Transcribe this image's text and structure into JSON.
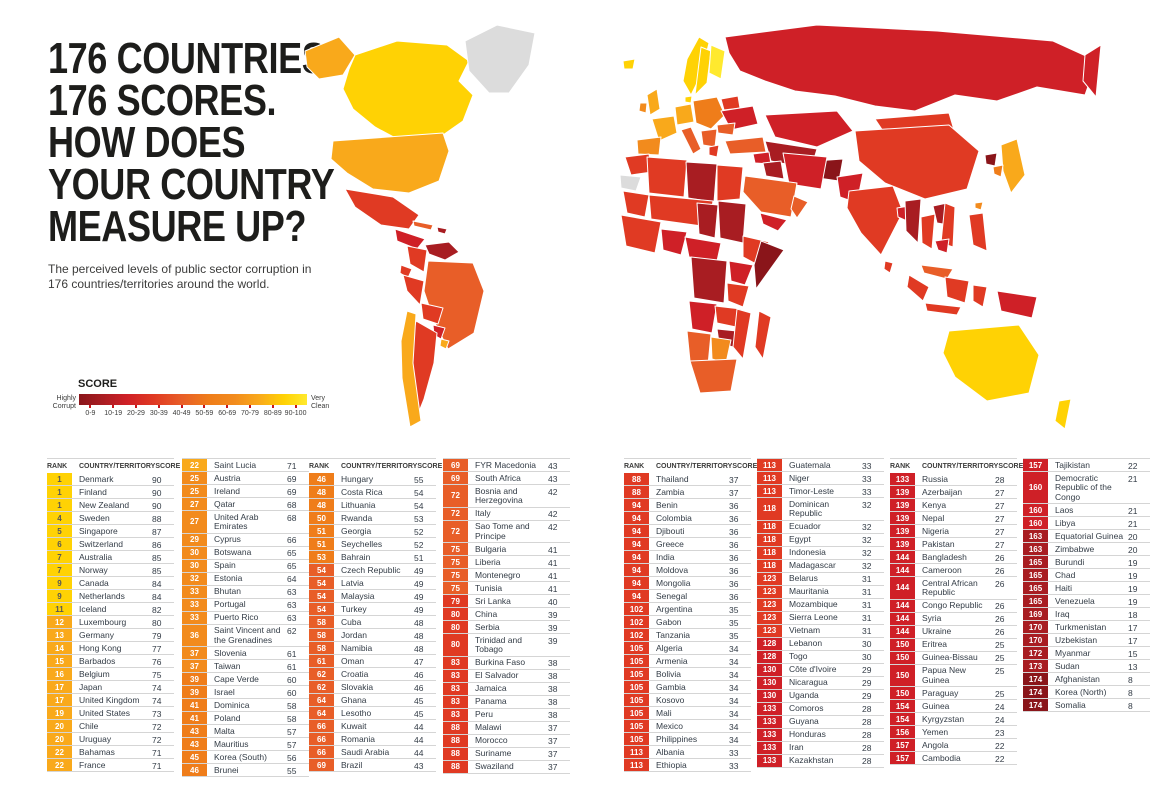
{
  "header": {
    "title_lines": [
      "176 COUNTRIES.",
      "176 SCORES.",
      "HOW DOES",
      "YOUR COUNTRY",
      "MEASURE UP?"
    ],
    "subtitle": "The perceived levels of public sector corruption in 176 countries/territories around the world."
  },
  "legend": {
    "title": "SCORE",
    "left_label_line1": "Highly",
    "left_label_line2": "Corrupt",
    "right_label_line1": "Very",
    "right_label_line2": "Clean",
    "ticks": [
      "0-9",
      "10-19",
      "20-29",
      "30-39",
      "40-49",
      "50-59",
      "60-69",
      "70-79",
      "80-89",
      "90-100"
    ]
  },
  "palette": {
    "buckets": [
      "#8A151A",
      "#A81D22",
      "#CF2027",
      "#E03A23",
      "#E85E28",
      "#EF7D1A",
      "#F28B1D",
      "#F9A91B",
      "#FFD204",
      "#FFE92E"
    ],
    "no_data": "#DCDCDC",
    "rank_text_dark": "#575756",
    "rank_text_light": "#FFFFFF"
  },
  "table": {
    "header_labels": {
      "rank": "RANK",
      "country": "COUNTRY/TERRITORY",
      "score": "SCORE"
    },
    "columns": [
      {
        "has_header": true,
        "count": 23
      },
      {
        "has_header": false,
        "count": 23
      },
      {
        "has_header": true,
        "count": 23
      },
      {
        "has_header": false,
        "count": 22
      },
      {
        "has_header": true,
        "count": 23
      },
      {
        "has_header": false,
        "count": 23
      },
      {
        "has_header": true,
        "count": 21
      },
      {
        "has_header": false,
        "count": 18
      }
    ]
  },
  "chart_data": {
    "type": "choropleth",
    "title": "176 COUNTRIES. 176 SCORES. HOW DOES YOUR COUNTRY MEASURE UP?",
    "scale_label": "SCORE",
    "scale_range": [
      0,
      100
    ],
    "scale_ticks": [
      "0-9",
      "10-19",
      "20-29",
      "30-39",
      "40-49",
      "50-59",
      "60-69",
      "70-79",
      "80-89",
      "90-100"
    ],
    "scale_ends": {
      "low": "Highly Corrupt",
      "high": "Very Clean"
    },
    "entries": [
      {
        "rank": 1,
        "country": "Denmark",
        "score": 90
      },
      {
        "rank": 1,
        "country": "Finland",
        "score": 90
      },
      {
        "rank": 1,
        "country": "New Zealand",
        "score": 90
      },
      {
        "rank": 4,
        "country": "Sweden",
        "score": 88
      },
      {
        "rank": 5,
        "country": "Singapore",
        "score": 87
      },
      {
        "rank": 6,
        "country": "Switzerland",
        "score": 86
      },
      {
        "rank": 7,
        "country": "Australia",
        "score": 85
      },
      {
        "rank": 7,
        "country": "Norway",
        "score": 85
      },
      {
        "rank": 9,
        "country": "Canada",
        "score": 84
      },
      {
        "rank": 9,
        "country": "Netherlands",
        "score": 84
      },
      {
        "rank": 11,
        "country": "Iceland",
        "score": 82
      },
      {
        "rank": 12,
        "country": "Luxembourg",
        "score": 80
      },
      {
        "rank": 13,
        "country": "Germany",
        "score": 79
      },
      {
        "rank": 14,
        "country": "Hong Kong",
        "score": 77
      },
      {
        "rank": 15,
        "country": "Barbados",
        "score": 76
      },
      {
        "rank": 16,
        "country": "Belgium",
        "score": 75
      },
      {
        "rank": 17,
        "country": "Japan",
        "score": 74
      },
      {
        "rank": 17,
        "country": "United Kingdom",
        "score": 74
      },
      {
        "rank": 19,
        "country": "United States",
        "score": 73
      },
      {
        "rank": 20,
        "country": "Chile",
        "score": 72
      },
      {
        "rank": 20,
        "country": "Uruguay",
        "score": 72
      },
      {
        "rank": 22,
        "country": "Bahamas",
        "score": 71
      },
      {
        "rank": 22,
        "country": "France",
        "score": 71
      },
      {
        "rank": 22,
        "country": "Saint Lucia",
        "score": 71
      },
      {
        "rank": 25,
        "country": "Austria",
        "score": 69
      },
      {
        "rank": 25,
        "country": "Ireland",
        "score": 69
      },
      {
        "rank": 27,
        "country": "Qatar",
        "score": 68
      },
      {
        "rank": 27,
        "country": "United Arab Emirates",
        "score": 68
      },
      {
        "rank": 29,
        "country": "Cyprus",
        "score": 66
      },
      {
        "rank": 30,
        "country": "Botswana",
        "score": 65
      },
      {
        "rank": 30,
        "country": "Spain",
        "score": 65
      },
      {
        "rank": 32,
        "country": "Estonia",
        "score": 64
      },
      {
        "rank": 33,
        "country": "Bhutan",
        "score": 63
      },
      {
        "rank": 33,
        "country": "Portugal",
        "score": 63
      },
      {
        "rank": 33,
        "country": "Puerto Rico",
        "score": 63
      },
      {
        "rank": 36,
        "country": "Saint Vincent and the Grenadines",
        "score": 62
      },
      {
        "rank": 37,
        "country": "Slovenia",
        "score": 61
      },
      {
        "rank": 37,
        "country": "Taiwan",
        "score": 61
      },
      {
        "rank": 39,
        "country": "Cape Verde",
        "score": 60
      },
      {
        "rank": 39,
        "country": "Israel",
        "score": 60
      },
      {
        "rank": 41,
        "country": "Dominica",
        "score": 58
      },
      {
        "rank": 41,
        "country": "Poland",
        "score": 58
      },
      {
        "rank": 43,
        "country": "Malta",
        "score": 57
      },
      {
        "rank": 43,
        "country": "Mauritius",
        "score": 57
      },
      {
        "rank": 45,
        "country": "Korea (South)",
        "score": 56
      },
      {
        "rank": 46,
        "country": "Brunei",
        "score": 55
      },
      {
        "rank": 46,
        "country": "Hungary",
        "score": 55
      },
      {
        "rank": 48,
        "country": "Costa Rica",
        "score": 54
      },
      {
        "rank": 48,
        "country": "Lithuania",
        "score": 54
      },
      {
        "rank": 50,
        "country": "Rwanda",
        "score": 53
      },
      {
        "rank": 51,
        "country": "Georgia",
        "score": 52
      },
      {
        "rank": 51,
        "country": "Seychelles",
        "score": 52
      },
      {
        "rank": 53,
        "country": "Bahrain",
        "score": 51
      },
      {
        "rank": 54,
        "country": "Czech Republic",
        "score": 49
      },
      {
        "rank": 54,
        "country": "Latvia",
        "score": 49
      },
      {
        "rank": 54,
        "country": "Malaysia",
        "score": 49
      },
      {
        "rank": 54,
        "country": "Turkey",
        "score": 49
      },
      {
        "rank": 58,
        "country": "Cuba",
        "score": 48
      },
      {
        "rank": 58,
        "country": "Jordan",
        "score": 48
      },
      {
        "rank": 58,
        "country": "Namibia",
        "score": 48
      },
      {
        "rank": 61,
        "country": "Oman",
        "score": 47
      },
      {
        "rank": 62,
        "country": "Croatia",
        "score": 46
      },
      {
        "rank": 62,
        "country": "Slovakia",
        "score": 46
      },
      {
        "rank": 64,
        "country": "Ghana",
        "score": 45
      },
      {
        "rank": 64,
        "country": "Lesotho",
        "score": 45
      },
      {
        "rank": 66,
        "country": "Kuwait",
        "score": 44
      },
      {
        "rank": 66,
        "country": "Romania",
        "score": 44
      },
      {
        "rank": 66,
        "country": "Saudi Arabia",
        "score": 44
      },
      {
        "rank": 69,
        "country": "Brazil",
        "score": 43
      },
      {
        "rank": 69,
        "country": "FYR Macedonia",
        "score": 43
      },
      {
        "rank": 69,
        "country": "South Africa",
        "score": 43
      },
      {
        "rank": 72,
        "country": "Bosnia and Herzegovina",
        "score": 42
      },
      {
        "rank": 72,
        "country": "Italy",
        "score": 42
      },
      {
        "rank": 72,
        "country": "Sao Tome and Principe",
        "score": 42
      },
      {
        "rank": 75,
        "country": "Bulgaria",
        "score": 41
      },
      {
        "rank": 75,
        "country": "Liberia",
        "score": 41
      },
      {
        "rank": 75,
        "country": "Montenegro",
        "score": 41
      },
      {
        "rank": 75,
        "country": "Tunisia",
        "score": 41
      },
      {
        "rank": 79,
        "country": "Sri Lanka",
        "score": 40
      },
      {
        "rank": 80,
        "country": "China",
        "score": 39
      },
      {
        "rank": 80,
        "country": "Serbia",
        "score": 39
      },
      {
        "rank": 80,
        "country": "Trinidad and Tobago",
        "score": 39
      },
      {
        "rank": 83,
        "country": "Burkina Faso",
        "score": 38
      },
      {
        "rank": 83,
        "country": "El Salvador",
        "score": 38
      },
      {
        "rank": 83,
        "country": "Jamaica",
        "score": 38
      },
      {
        "rank": 83,
        "country": "Panama",
        "score": 38
      },
      {
        "rank": 83,
        "country": "Peru",
        "score": 38
      },
      {
        "rank": 88,
        "country": "Malawi",
        "score": 37
      },
      {
        "rank": 88,
        "country": "Morocco",
        "score": 37
      },
      {
        "rank": 88,
        "country": "Suriname",
        "score": 37
      },
      {
        "rank": 88,
        "country": "Swaziland",
        "score": 37
      },
      {
        "rank": 88,
        "country": "Thailand",
        "score": 37
      },
      {
        "rank": 88,
        "country": "Zambia",
        "score": 37
      },
      {
        "rank": 94,
        "country": "Benin",
        "score": 36
      },
      {
        "rank": 94,
        "country": "Colombia",
        "score": 36
      },
      {
        "rank": 94,
        "country": "Djibouti",
        "score": 36
      },
      {
        "rank": 94,
        "country": "Greece",
        "score": 36
      },
      {
        "rank": 94,
        "country": "India",
        "score": 36
      },
      {
        "rank": 94,
        "country": "Moldova",
        "score": 36
      },
      {
        "rank": 94,
        "country": "Mongolia",
        "score": 36
      },
      {
        "rank": 94,
        "country": "Senegal",
        "score": 36
      },
      {
        "rank": 102,
        "country": "Argentina",
        "score": 35
      },
      {
        "rank": 102,
        "country": "Gabon",
        "score": 35
      },
      {
        "rank": 102,
        "country": "Tanzania",
        "score": 35
      },
      {
        "rank": 105,
        "country": "Algeria",
        "score": 34
      },
      {
        "rank": 105,
        "country": "Armenia",
        "score": 34
      },
      {
        "rank": 105,
        "country": "Bolivia",
        "score": 34
      },
      {
        "rank": 105,
        "country": "Gambia",
        "score": 34
      },
      {
        "rank": 105,
        "country": "Kosovo",
        "score": 34
      },
      {
        "rank": 105,
        "country": "Mali",
        "score": 34
      },
      {
        "rank": 105,
        "country": "Mexico",
        "score": 34
      },
      {
        "rank": 105,
        "country": "Philippines",
        "score": 34
      },
      {
        "rank": 113,
        "country": "Albania",
        "score": 33
      },
      {
        "rank": 113,
        "country": "Ethiopia",
        "score": 33
      },
      {
        "rank": 113,
        "country": "Guatemala",
        "score": 33
      },
      {
        "rank": 113,
        "country": "Niger",
        "score": 33
      },
      {
        "rank": 113,
        "country": "Timor-Leste",
        "score": 33
      },
      {
        "rank": 118,
        "country": "Dominican Republic",
        "score": 32
      },
      {
        "rank": 118,
        "country": "Ecuador",
        "score": 32
      },
      {
        "rank": 118,
        "country": "Egypt",
        "score": 32
      },
      {
        "rank": 118,
        "country": "Indonesia",
        "score": 32
      },
      {
        "rank": 118,
        "country": "Madagascar",
        "score": 32
      },
      {
        "rank": 123,
        "country": "Belarus",
        "score": 31
      },
      {
        "rank": 123,
        "country": "Mauritania",
        "score": 31
      },
      {
        "rank": 123,
        "country": "Mozambique",
        "score": 31
      },
      {
        "rank": 123,
        "country": "Sierra Leone",
        "score": 31
      },
      {
        "rank": 123,
        "country": "Vietnam",
        "score": 31
      },
      {
        "rank": 128,
        "country": "Lebanon",
        "score": 30
      },
      {
        "rank": 128,
        "country": "Togo",
        "score": 30
      },
      {
        "rank": 130,
        "country": "Côte d'Ivoire",
        "score": 29
      },
      {
        "rank": 130,
        "country": "Nicaragua",
        "score": 29
      },
      {
        "rank": 130,
        "country": "Uganda",
        "score": 29
      },
      {
        "rank": 133,
        "country": "Comoros",
        "score": 28
      },
      {
        "rank": 133,
        "country": "Guyana",
        "score": 28
      },
      {
        "rank": 133,
        "country": "Honduras",
        "score": 28
      },
      {
        "rank": 133,
        "country": "Iran",
        "score": 28
      },
      {
        "rank": 133,
        "country": "Kazakhstan",
        "score": 28
      },
      {
        "rank": 133,
        "country": "Russia",
        "score": 28
      },
      {
        "rank": 139,
        "country": "Azerbaijan",
        "score": 27
      },
      {
        "rank": 139,
        "country": "Kenya",
        "score": 27
      },
      {
        "rank": 139,
        "country": "Nepal",
        "score": 27
      },
      {
        "rank": 139,
        "country": "Nigeria",
        "score": 27
      },
      {
        "rank": 139,
        "country": "Pakistan",
        "score": 27
      },
      {
        "rank": 144,
        "country": "Bangladesh",
        "score": 26
      },
      {
        "rank": 144,
        "country": "Cameroon",
        "score": 26
      },
      {
        "rank": 144,
        "country": "Central African Republic",
        "score": 26
      },
      {
        "rank": 144,
        "country": "Congo Republic",
        "score": 26
      },
      {
        "rank": 144,
        "country": "Syria",
        "score": 26
      },
      {
        "rank": 144,
        "country": "Ukraine",
        "score": 26
      },
      {
        "rank": 150,
        "country": "Eritrea",
        "score": 25
      },
      {
        "rank": 150,
        "country": "Guinea-Bissau",
        "score": 25
      },
      {
        "rank": 150,
        "country": "Papua New Guinea",
        "score": 25
      },
      {
        "rank": 150,
        "country": "Paraguay",
        "score": 25
      },
      {
        "rank": 154,
        "country": "Guinea",
        "score": 24
      },
      {
        "rank": 154,
        "country": "Kyrgyzstan",
        "score": 24
      },
      {
        "rank": 156,
        "country": "Yemen",
        "score": 23
      },
      {
        "rank": 157,
        "country": "Angola",
        "score": 22
      },
      {
        "rank": 157,
        "country": "Cambodia",
        "score": 22
      },
      {
        "rank": 157,
        "country": "Tajikistan",
        "score": 22
      },
      {
        "rank": 160,
        "country": "Democratic Republic of the Congo",
        "score": 21
      },
      {
        "rank": 160,
        "country": "Laos",
        "score": 21
      },
      {
        "rank": 160,
        "country": "Libya",
        "score": 21
      },
      {
        "rank": 163,
        "country": "Equatorial Guinea",
        "score": 20
      },
      {
        "rank": 163,
        "country": "Zimbabwe",
        "score": 20
      },
      {
        "rank": 165,
        "country": "Burundi",
        "score": 19
      },
      {
        "rank": 165,
        "country": "Chad",
        "score": 19
      },
      {
        "rank": 165,
        "country": "Haiti",
        "score": 19
      },
      {
        "rank": 165,
        "country": "Venezuela",
        "score": 19
      },
      {
        "rank": 169,
        "country": "Iraq",
        "score": 18
      },
      {
        "rank": 170,
        "country": "Turkmenistan",
        "score": 17
      },
      {
        "rank": 170,
        "country": "Uzbekistan",
        "score": 17
      },
      {
        "rank": 172,
        "country": "Myanmar",
        "score": 15
      },
      {
        "rank": 173,
        "country": "Sudan",
        "score": 13
      },
      {
        "rank": 174,
        "country": "Afghanistan",
        "score": 8
      },
      {
        "rank": 174,
        "country": "Korea (North)",
        "score": 8
      },
      {
        "rank": 174,
        "country": "Somalia",
        "score": 8
      }
    ]
  }
}
